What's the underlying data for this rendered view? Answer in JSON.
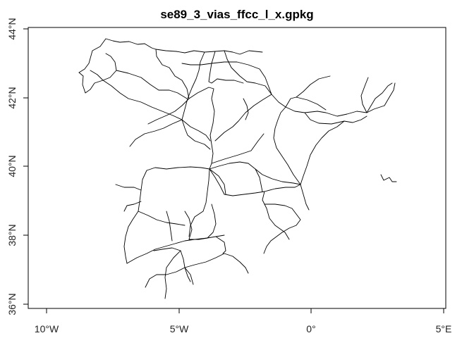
{
  "title": "se89_3_vias_ffcc_l_x.gpkg",
  "map": {
    "layer": "rail lines",
    "line_color": "#000000",
    "background": "#ffffff",
    "x_ticks": [
      {
        "lon": -10,
        "label": "10°W"
      },
      {
        "lon": -5,
        "label": "5°W"
      },
      {
        "lon": 0,
        "label": "0°"
      },
      {
        "lon": 5,
        "label": "5°E"
      }
    ],
    "y_ticks": [
      {
        "lat": 36,
        "label": "36°N"
      },
      {
        "lat": 38,
        "label": "38°N"
      },
      {
        "lat": 40,
        "label": "40°N"
      },
      {
        "lat": 42,
        "label": "42°N"
      },
      {
        "lat": 44,
        "label": "44°N"
      }
    ]
  }
}
